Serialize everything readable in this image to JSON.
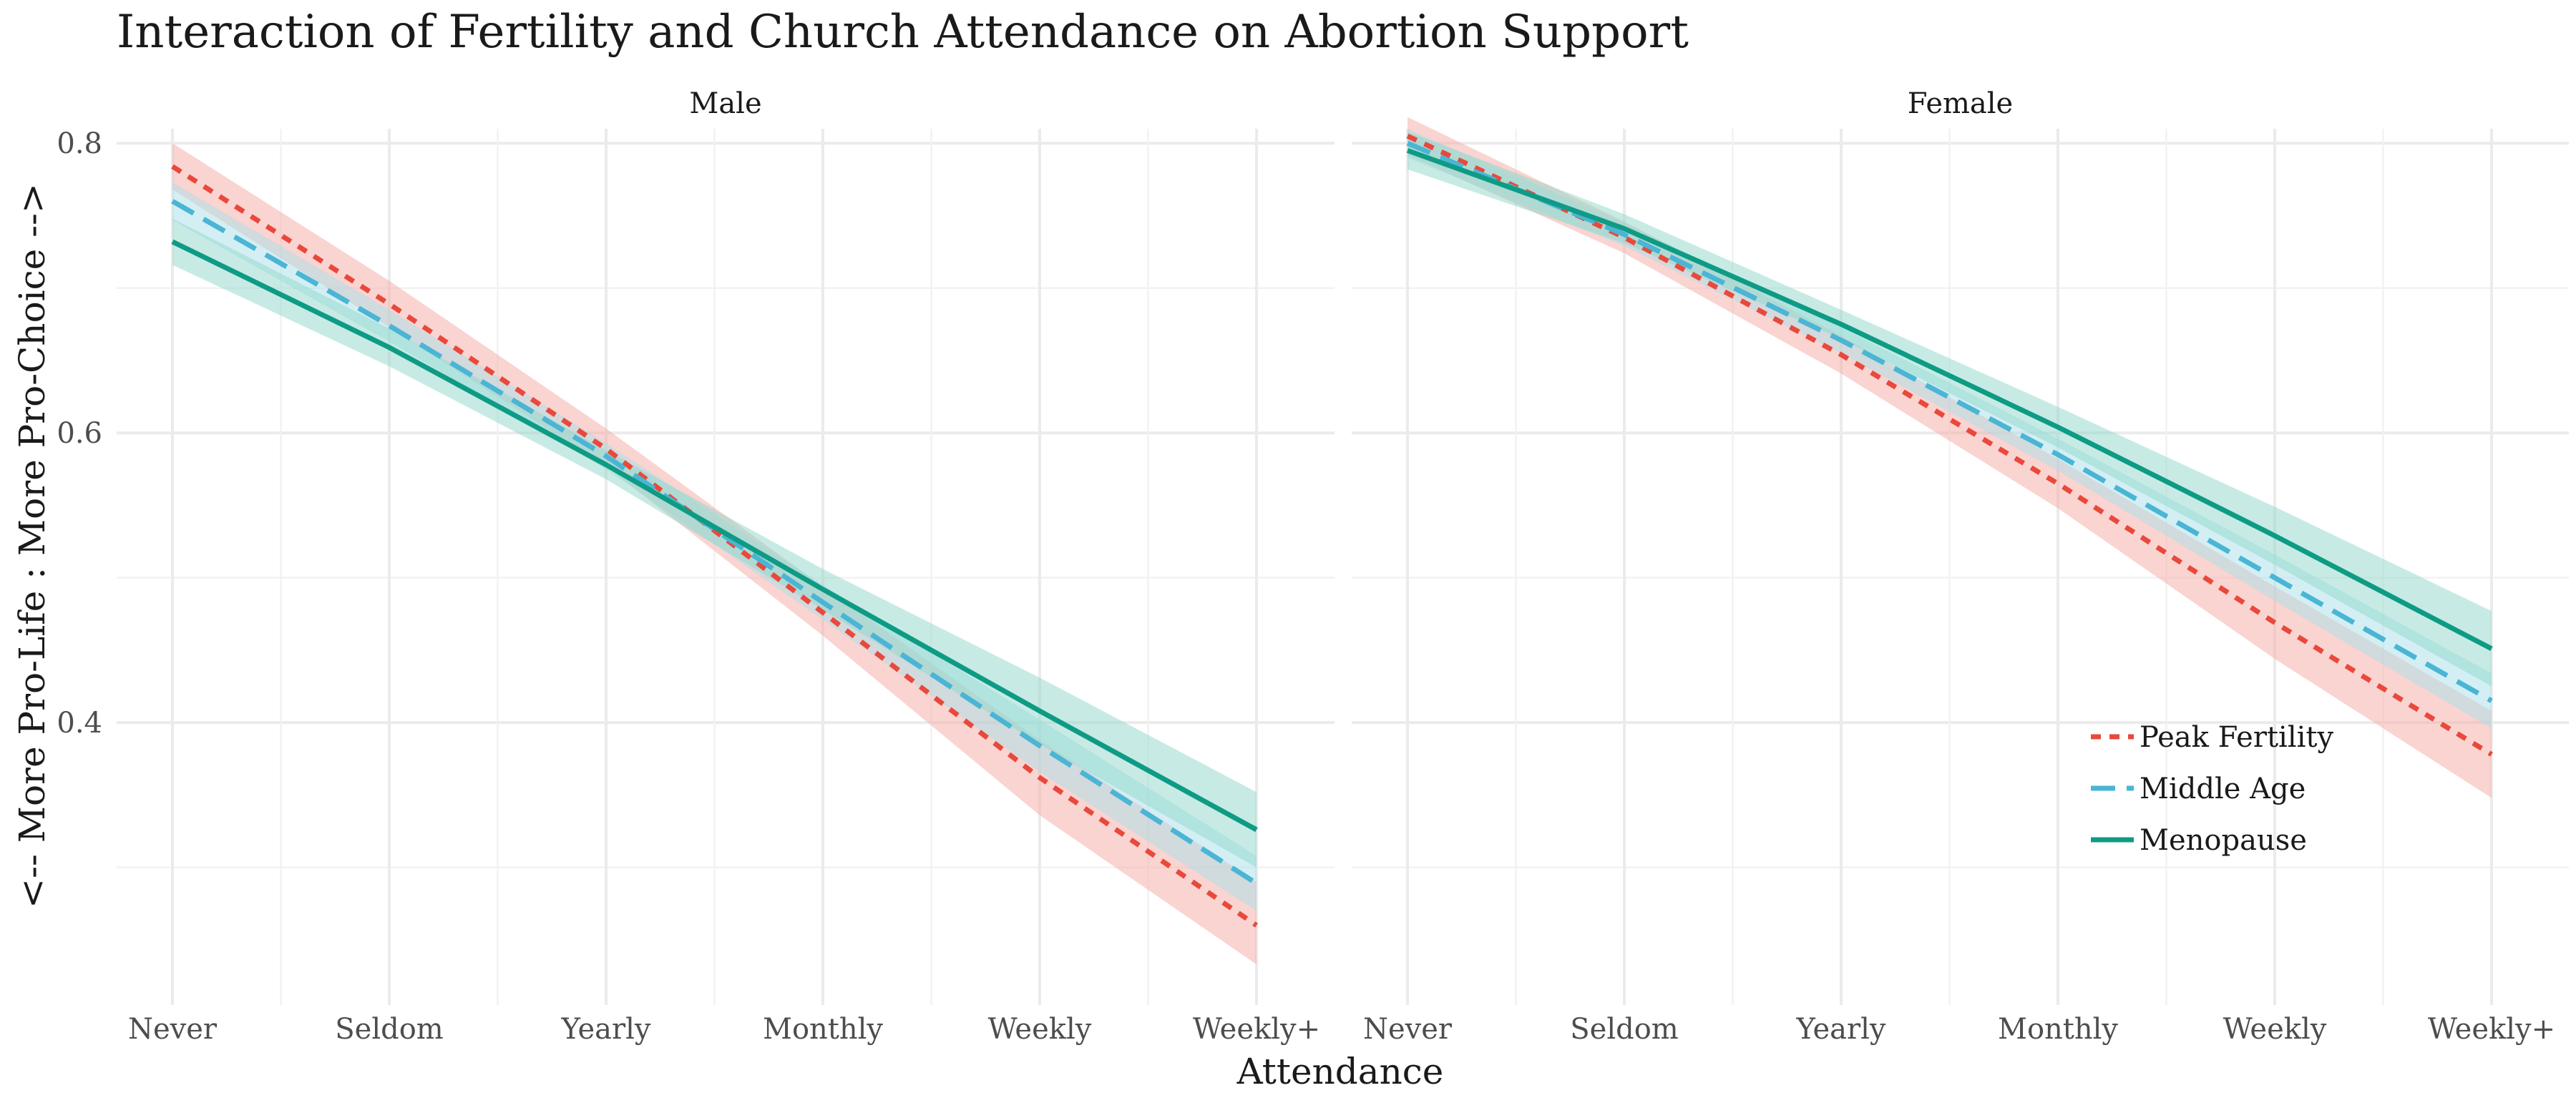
{
  "chart_data": {
    "type": "line",
    "title": "Interaction of Fertility and Church Attendance on Abortion Support",
    "xlabel": "Attendance",
    "ylabel": "<-- More Pro-Life : More Pro-Choice -->",
    "ylim": [
      0.205,
      0.81
    ],
    "y_ticks": [
      "0.4",
      "0.6",
      "0.8"
    ],
    "y_tick_values": [
      0.4,
      0.6,
      0.8
    ],
    "y_minor_gridlines": [
      0.3,
      0.5,
      0.7
    ],
    "categories": [
      "Never",
      "Seldom",
      "Yearly",
      "Monthly",
      "Weekly",
      "Weekly+"
    ],
    "grid": true,
    "legend_position": "inside-bottom-right of Female panel",
    "panels": [
      {
        "name": "Male",
        "series": [
          {
            "name": "Peak Fertility",
            "values": [
              0.784,
              0.689,
              0.589,
              0.476,
              0.362,
              0.26
            ],
            "lower": [
              0.768,
              0.673,
              0.577,
              0.46,
              0.336,
              0.233
            ],
            "upper": [
              0.8,
              0.705,
              0.603,
              0.494,
              0.388,
              0.29
            ]
          },
          {
            "name": "Middle Age",
            "values": [
              0.76,
              0.674,
              0.584,
              0.483,
              0.384,
              0.289
            ],
            "lower": [
              0.747,
              0.663,
              0.575,
              0.471,
              0.366,
              0.27
            ],
            "upper": [
              0.773,
              0.685,
              0.593,
              0.495,
              0.402,
              0.308
            ]
          },
          {
            "name": "Menopause",
            "values": [
              0.732,
              0.659,
              0.578,
              0.492,
              0.408,
              0.326
            ],
            "lower": [
              0.716,
              0.646,
              0.568,
              0.478,
              0.385,
              0.3
            ],
            "upper": [
              0.748,
              0.672,
              0.588,
              0.506,
              0.431,
              0.352
            ]
          }
        ]
      },
      {
        "name": "Female",
        "series": [
          {
            "name": "Peak Fertility",
            "values": [
              0.805,
              0.735,
              0.654,
              0.565,
              0.469,
              0.378
            ],
            "lower": [
              0.792,
              0.724,
              0.641,
              0.548,
              0.444,
              0.348
            ],
            "upper": [
              0.818,
              0.746,
              0.667,
              0.582,
              0.494,
              0.408
            ]
          },
          {
            "name": "Middle Age",
            "values": [
              0.8,
              0.737,
              0.664,
              0.585,
              0.5,
              0.415
            ],
            "lower": [
              0.79,
              0.729,
              0.655,
              0.574,
              0.484,
              0.396
            ],
            "upper": [
              0.81,
              0.745,
              0.673,
              0.596,
              0.516,
              0.434
            ]
          },
          {
            "name": "Menopause",
            "values": [
              0.795,
              0.741,
              0.675,
              0.604,
              0.529,
              0.451
            ],
            "lower": [
              0.782,
              0.731,
              0.665,
              0.59,
              0.509,
              0.425
            ],
            "upper": [
              0.808,
              0.751,
              0.685,
              0.618,
              0.549,
              0.477
            ]
          }
        ]
      }
    ],
    "legend": [
      {
        "name": "Peak Fertility",
        "color": "#e8493c",
        "line": "dotted"
      },
      {
        "name": "Middle Age",
        "color": "#4ab5d4",
        "line": "dashed"
      },
      {
        "name": "Menopause",
        "color": "#0e9b85",
        "line": "solid"
      }
    ],
    "colors": {
      "Peak Fertility": "#e8493c",
      "Middle Age": "#4ab5d4",
      "Menopause": "#0e9b85",
      "Peak Fertility band": "#f5a9a3",
      "Middle Age band": "#a8dfe9",
      "Menopause band": "#8fd7c9",
      "grid": "#ebebeb"
    }
  }
}
